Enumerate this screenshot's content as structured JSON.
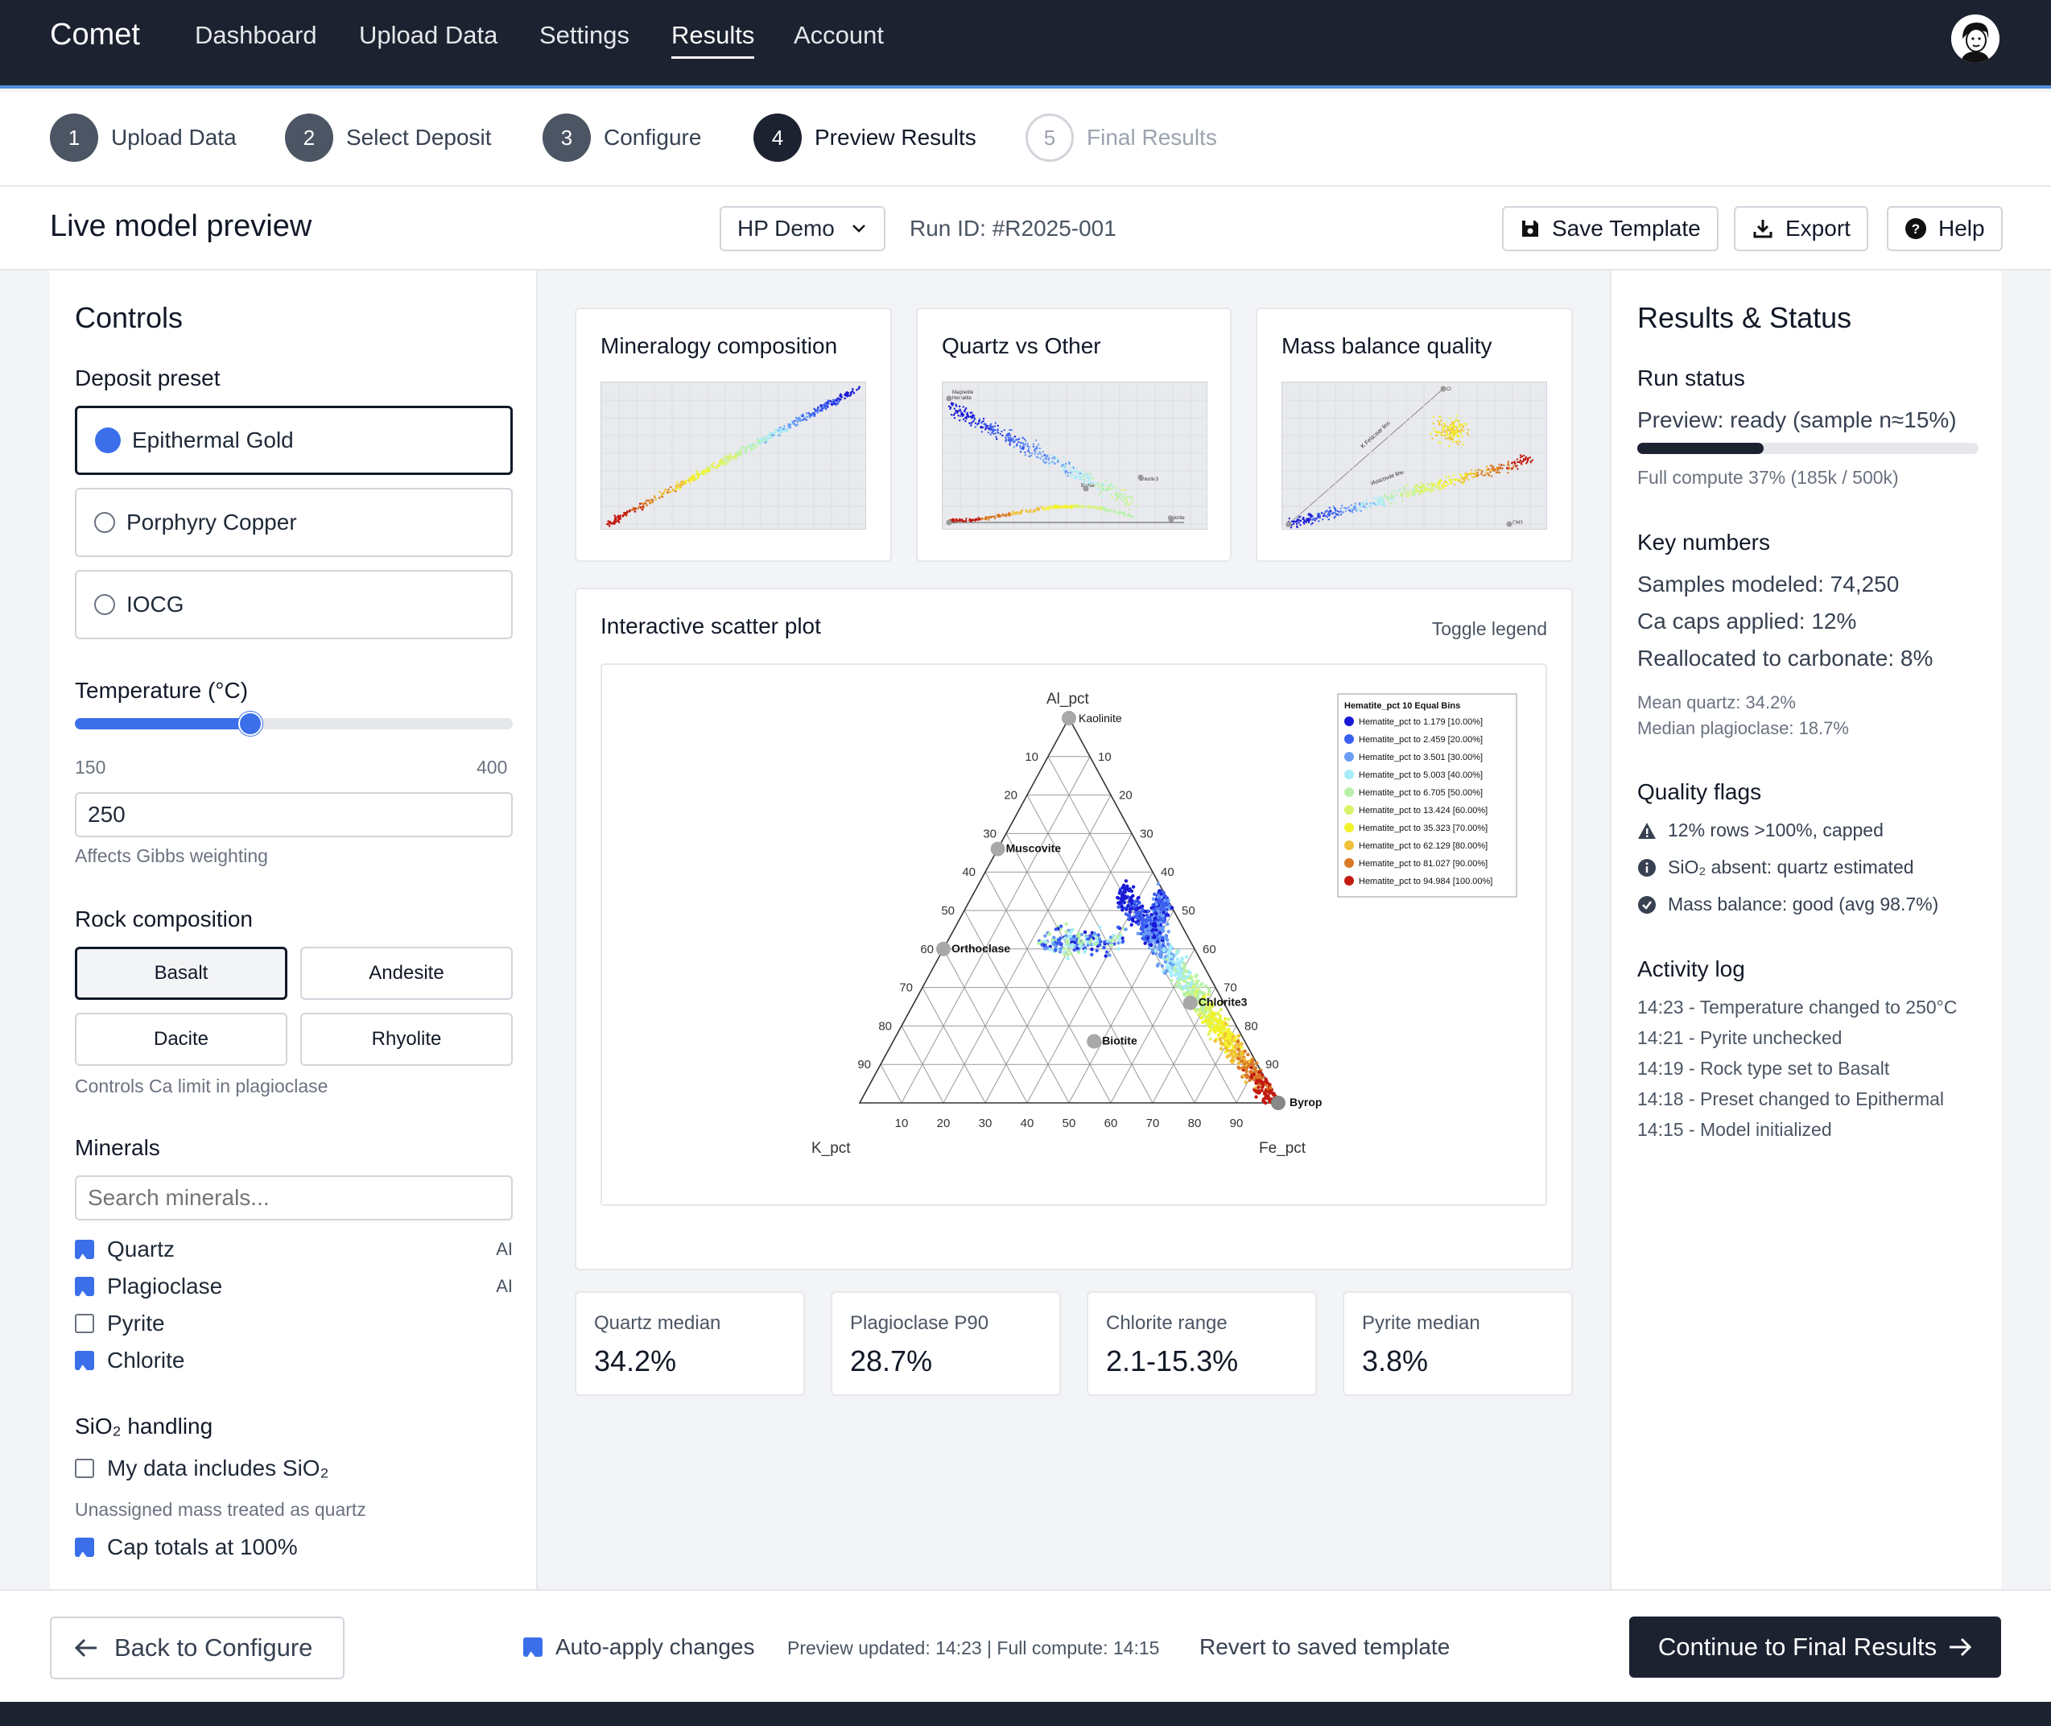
{
  "nav": {
    "brand": "Comet",
    "links": [
      "Dashboard",
      "Upload Data",
      "Settings",
      "Results",
      "Account"
    ],
    "active": "Results"
  },
  "stepper": [
    {
      "num": "1",
      "label": "Upload Data",
      "state": "done"
    },
    {
      "num": "2",
      "label": "Select Deposit",
      "state": "done"
    },
    {
      "num": "3",
      "label": "Configure",
      "state": "done"
    },
    {
      "num": "4",
      "label": "Preview Results",
      "state": "current"
    },
    {
      "num": "5",
      "label": "Final Results",
      "state": "todo"
    }
  ],
  "toolbar": {
    "title": "Live model preview",
    "dataset": "HP Demo",
    "run_id": "Run ID: #R2025-001",
    "save_label": "Save Template",
    "export_label": "Export",
    "help_label": "Help"
  },
  "controls": {
    "title": "Controls",
    "preset_label": "Deposit preset",
    "presets": [
      "Epithermal Gold",
      "Porphyry Copper",
      "IOCG"
    ],
    "preset_selected": "Epithermal Gold",
    "temp_label": "Temperature (°C)",
    "temp_min": "150",
    "temp_max": "400",
    "temp_value": "250",
    "temp_fraction": 0.4,
    "temp_help": "Affects Gibbs weighting",
    "rock_label": "Rock composition",
    "rocks": [
      "Basalt",
      "Andesite",
      "Dacite",
      "Rhyolite"
    ],
    "rock_selected": "Basalt",
    "rock_help": "Controls Ca limit in plagioclase",
    "minerals_label": "Minerals",
    "search_placeholder": "Search minerals...",
    "minerals": [
      {
        "name": "Quartz",
        "checked": true,
        "badge": "AI"
      },
      {
        "name": "Plagioclase",
        "checked": true,
        "badge": "AI"
      },
      {
        "name": "Pyrite",
        "checked": false,
        "badge": ""
      },
      {
        "name": "Chlorite",
        "checked": true,
        "badge": ""
      }
    ],
    "sio2_label": "SiO₂ handling",
    "sio2_includes": "My data includes SiO₂",
    "sio2_help": "Unassigned mass treated as quartz",
    "cap_label": "Cap totals at 100%"
  },
  "thumbnails": [
    {
      "title": "Mineralogy composition"
    },
    {
      "title": "Quartz vs Other",
      "labels": [
        "Magnetite",
        "Hematite",
        "Chlorite3",
        "Biotite",
        "Chlorite"
      ]
    },
    {
      "title": "Mass balance quality",
      "labels": [
        "K Feldspar line",
        "Muscovite line",
        "Cl",
        "CM3"
      ]
    }
  ],
  "scatter": {
    "title": "Interactive scatter plot",
    "toggle_label": "Toggle legend"
  },
  "chart_data": {
    "type": "scatter",
    "title": "",
    "axes": {
      "top": "Al_pct",
      "left": "K_pct",
      "right": "Fe_pct"
    },
    "ticks": [
      "10",
      "20",
      "30",
      "40",
      "50",
      "60",
      "70",
      "80",
      "90"
    ],
    "vertex_labels": [
      "Kaolinite",
      "Byrop"
    ],
    "minerals": [
      {
        "name": "Muscovite",
        "al": 66,
        "fe": 0
      },
      {
        "name": "Orthoclase",
        "al": 40,
        "fe": 0
      },
      {
        "name": "Biotite",
        "al": 16,
        "fe": 48
      },
      {
        "name": "Chlorite3",
        "al": 26,
        "fe": 66
      }
    ],
    "legend_title": "Hematite_pct 10 Equal Bins",
    "bins": [
      {
        "label": "Hematite_pct to 1.179 [10.00%]",
        "color": "#1a1ad6"
      },
      {
        "label": "Hematite_pct to 2.459 [20.00%]",
        "color": "#3a5ef0"
      },
      {
        "label": "Hematite_pct to 3.501 [30.00%]",
        "color": "#6a9cf6"
      },
      {
        "label": "Hematite_pct to 5.003 [40.00%]",
        "color": "#a6ecf8"
      },
      {
        "label": "Hematite_pct to 6.705 [50.00%]",
        "color": "#b8f2a8"
      },
      {
        "label": "Hematite_pct to 13.424 [60.00%]",
        "color": "#d8f56a"
      },
      {
        "label": "Hematite_pct to 35.323 [70.00%]",
        "color": "#f2f22a"
      },
      {
        "label": "Hematite_pct to 62.129 [80.00%]",
        "color": "#f0c03a"
      },
      {
        "label": "Hematite_pct to 81.027 [90.00%]",
        "color": "#d97a28"
      },
      {
        "label": "Hematite_pct to 94.984 [100.00%]",
        "color": "#c21a10"
      }
    ]
  },
  "metrics": [
    {
      "label": "Quartz median",
      "value": "34.2%"
    },
    {
      "label": "Plagioclase P90",
      "value": "28.7%"
    },
    {
      "label": "Chlorite range",
      "value": "2.1-15.3%"
    },
    {
      "label": "Pyrite median",
      "value": "3.8%"
    }
  ],
  "results": {
    "title": "Results & Status",
    "run_status_label": "Run status",
    "preview_status": "Preview: ready (sample n≈15%)",
    "progress_fraction": 0.37,
    "compute_text": "Full compute 37% (185k / 500k)",
    "key_label": "Key numbers",
    "key_numbers": [
      "Samples modeled: 74,250",
      "Ca caps applied: 12%",
      "Reallocated to carbonate: 8%"
    ],
    "sub_numbers": [
      "Mean quartz: 34.2%",
      "Median plagioclase: 18.7%"
    ],
    "flags_label": "Quality flags",
    "flags": [
      {
        "icon": "warning-icon",
        "text": "12% rows >100%, capped"
      },
      {
        "icon": "info-icon",
        "text": "SiO₂ absent: quartz estimated"
      },
      {
        "icon": "check-circle-icon",
        "text": "Mass balance: good (avg 98.7%)"
      }
    ],
    "log_label": "Activity log",
    "log": [
      "14:23 - Temperature changed to 250°C",
      "14:21 - Pyrite unchecked",
      "14:19 - Rock type set to Basalt",
      "14:18 - Preset changed to Epithermal",
      "14:15 - Model initialized"
    ]
  },
  "bottom": {
    "back_label": "Back to Configure",
    "auto_apply": "Auto-apply changes",
    "updated": "Preview updated: 14:23 | Full compute: 14:15",
    "revert": "Revert to saved template",
    "continue_label": "Continue to Final Results"
  }
}
